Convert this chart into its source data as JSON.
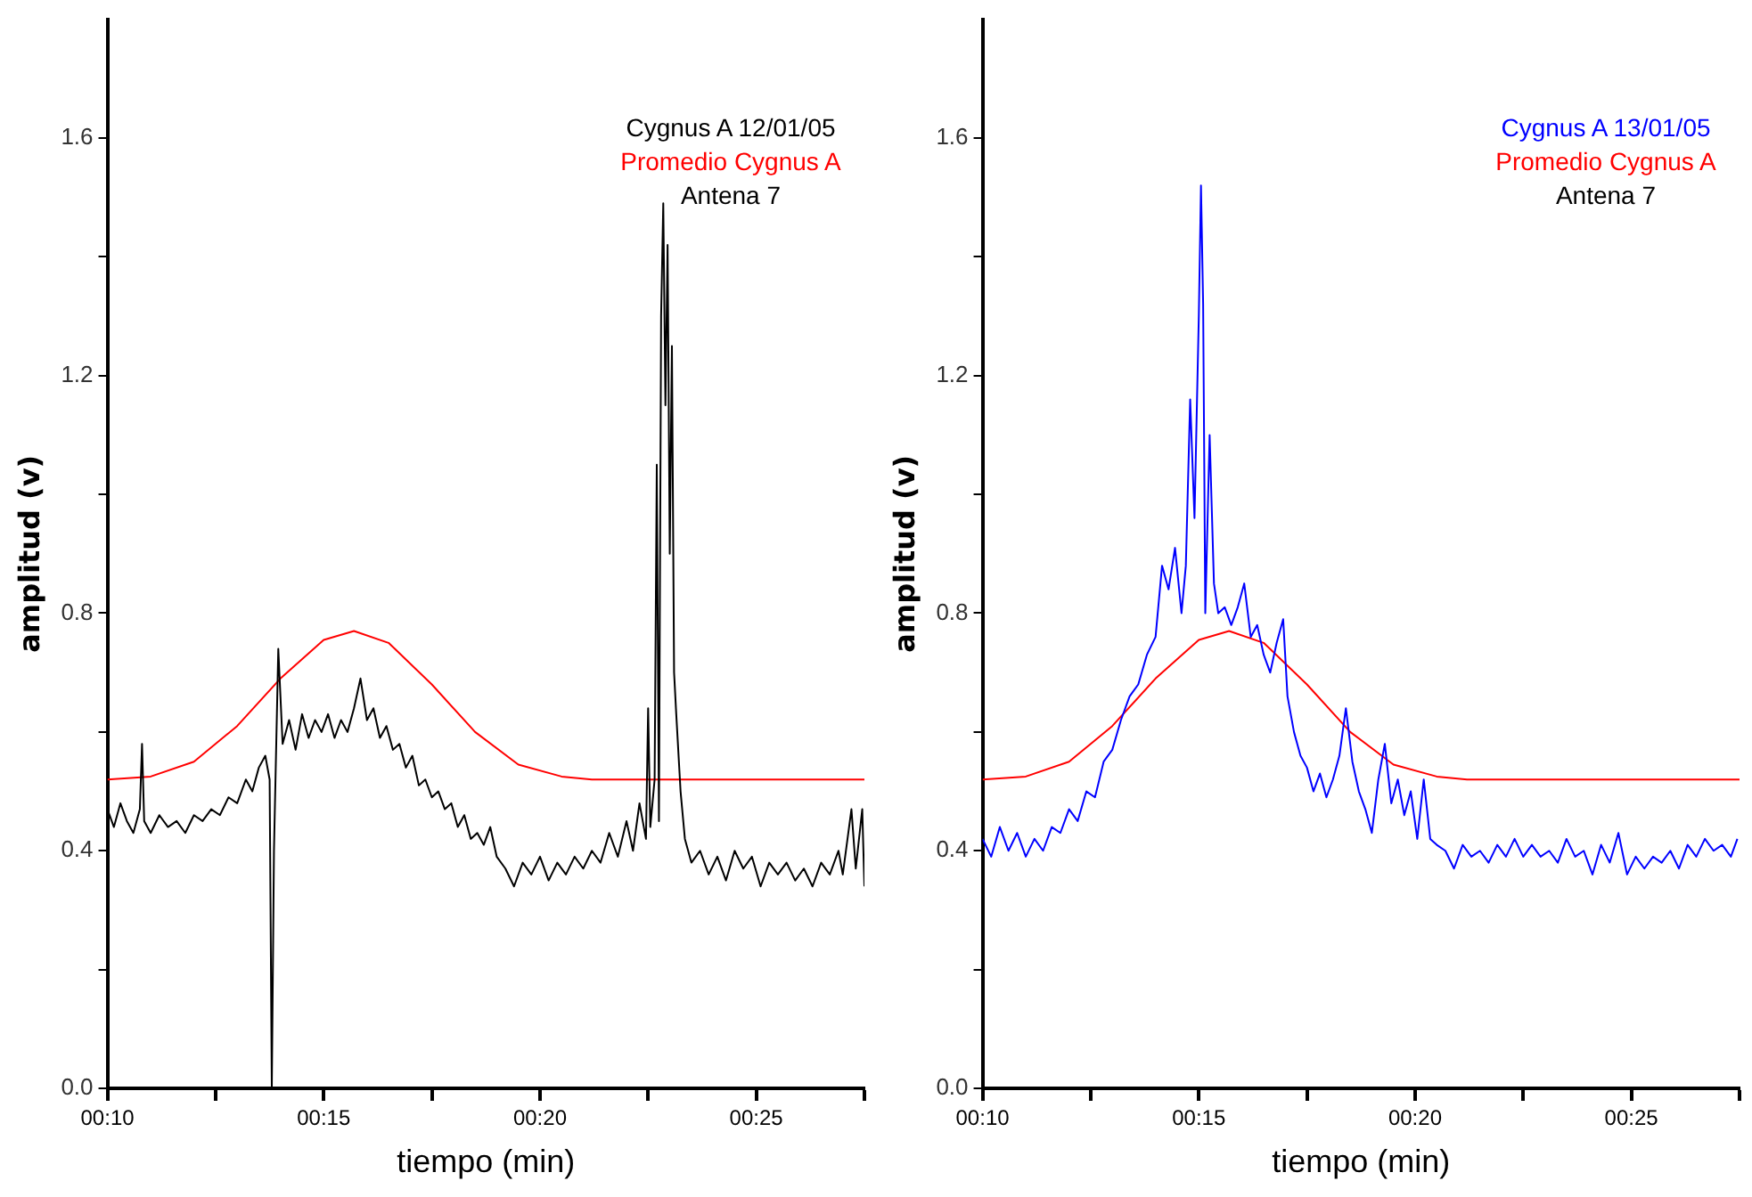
{
  "chart_data": [
    {
      "type": "line",
      "xlabel": "tiempo (min)",
      "ylabel": "amplitud (v)",
      "grid": false,
      "legend": "top right",
      "marker": "none",
      "line_style": "solid",
      "annotations": [
        "Antena 7"
      ],
      "xlim": [
        10,
        27.5
      ],
      "xticks": [
        {
          "value": 10,
          "label": "00:10"
        },
        {
          "value": 12.5,
          "label": null
        },
        {
          "value": 15,
          "label": "00:15"
        },
        {
          "value": 17.5,
          "label": null
        },
        {
          "value": 20,
          "label": "00:20"
        },
        {
          "value": 22.5,
          "label": null
        },
        {
          "value": 25,
          "label": "00:25"
        },
        {
          "value": 27.5,
          "label": null
        }
      ],
      "ylim": [
        0,
        1.8
      ],
      "yticks": [
        {
          "value": 0,
          "label": "0.0"
        },
        {
          "value": 0.2,
          "label": null
        },
        {
          "value": 0.4,
          "label": "0.4"
        },
        {
          "value": 0.6,
          "label": null
        },
        {
          "value": 0.8,
          "label": "0.8"
        },
        {
          "value": 1.0,
          "label": null
        },
        {
          "value": 1.2,
          "label": "1.2"
        },
        {
          "value": 1.4,
          "label": null
        },
        {
          "value": 1.6,
          "label": "1.6"
        }
      ],
      "series": [
        {
          "name": "Cygnus A 12/01/05",
          "color": "#000000",
          "x": [
            10.0,
            10.15,
            10.3,
            10.45,
            10.6,
            10.75,
            10.8,
            10.85,
            11.0,
            11.2,
            11.4,
            11.6,
            11.8,
            12.0,
            12.2,
            12.4,
            12.6,
            12.8,
            13.0,
            13.2,
            13.35,
            13.5,
            13.65,
            13.75,
            13.8,
            13.85,
            13.95,
            14.05,
            14.2,
            14.35,
            14.5,
            14.65,
            14.8,
            14.95,
            15.1,
            15.25,
            15.4,
            15.55,
            15.7,
            15.85,
            16.0,
            16.15,
            16.3,
            16.45,
            16.6,
            16.75,
            16.9,
            17.05,
            17.2,
            17.35,
            17.5,
            17.65,
            17.8,
            17.95,
            18.1,
            18.25,
            18.4,
            18.55,
            18.7,
            18.85,
            19.0,
            19.2,
            19.4,
            19.6,
            19.8,
            20.0,
            20.2,
            20.4,
            20.6,
            20.8,
            21.0,
            21.2,
            21.4,
            21.6,
            21.8,
            22.0,
            22.15,
            22.3,
            22.45,
            22.5,
            22.55,
            22.65,
            22.7,
            22.75,
            22.8,
            22.85,
            22.9,
            22.95,
            23.0,
            23.05,
            23.1,
            23.15,
            23.25,
            23.35,
            23.5,
            23.7,
            23.9,
            24.1,
            24.3,
            24.5,
            24.7,
            24.9,
            25.1,
            25.3,
            25.5,
            25.7,
            25.9,
            26.1,
            26.3,
            26.5,
            26.7,
            26.9,
            27.0,
            27.2,
            27.3,
            27.45,
            27.5
          ],
          "values": [
            0.47,
            0.44,
            0.48,
            0.45,
            0.43,
            0.47,
            0.58,
            0.45,
            0.43,
            0.46,
            0.44,
            0.45,
            0.43,
            0.46,
            0.45,
            0.47,
            0.46,
            0.49,
            0.48,
            0.52,
            0.5,
            0.54,
            0.56,
            0.52,
            0.0,
            0.4,
            0.74,
            0.58,
            0.62,
            0.57,
            0.63,
            0.59,
            0.62,
            0.6,
            0.63,
            0.59,
            0.62,
            0.6,
            0.64,
            0.69,
            0.62,
            0.64,
            0.59,
            0.61,
            0.57,
            0.58,
            0.54,
            0.56,
            0.51,
            0.52,
            0.49,
            0.5,
            0.47,
            0.48,
            0.44,
            0.46,
            0.42,
            0.43,
            0.41,
            0.44,
            0.39,
            0.37,
            0.34,
            0.38,
            0.36,
            0.39,
            0.35,
            0.38,
            0.36,
            0.39,
            0.37,
            0.4,
            0.38,
            0.43,
            0.39,
            0.45,
            0.4,
            0.48,
            0.42,
            0.64,
            0.44,
            0.52,
            1.05,
            0.45,
            1.3,
            1.49,
            1.15,
            1.42,
            0.9,
            1.25,
            0.7,
            0.63,
            0.5,
            0.42,
            0.38,
            0.4,
            0.36,
            0.39,
            0.35,
            0.4,
            0.37,
            0.39,
            0.34,
            0.38,
            0.36,
            0.38,
            0.35,
            0.37,
            0.34,
            0.38,
            0.36,
            0.4,
            0.36,
            0.47,
            0.37,
            0.47,
            0.34
          ]
        },
        {
          "name": "Promedio Cygnus A",
          "color": "#ff0000",
          "x": [
            10,
            11,
            12,
            13,
            14,
            15,
            15.7,
            16.5,
            17.5,
            18.5,
            19.5,
            20.5,
            21.2,
            27.5
          ],
          "values": [
            0.52,
            0.525,
            0.55,
            0.61,
            0.69,
            0.755,
            0.77,
            0.75,
            0.68,
            0.6,
            0.545,
            0.525,
            0.52,
            0.52
          ]
        }
      ]
    },
    {
      "type": "line",
      "xlabel": "tiempo (min)",
      "ylabel": "amplitud (v)",
      "grid": false,
      "legend": "top right",
      "marker": "none",
      "line_style": "solid",
      "annotations": [
        "Antena 7"
      ],
      "xlim": [
        10,
        27.5
      ],
      "xticks": [
        {
          "value": 10,
          "label": "00:10"
        },
        {
          "value": 12.5,
          "label": null
        },
        {
          "value": 15,
          "label": "00:15"
        },
        {
          "value": 17.5,
          "label": null
        },
        {
          "value": 20,
          "label": "00:20"
        },
        {
          "value": 22.5,
          "label": null
        },
        {
          "value": 25,
          "label": "00:25"
        },
        {
          "value": 27.5,
          "label": null
        }
      ],
      "ylim": [
        0,
        1.8
      ],
      "yticks": [
        {
          "value": 0,
          "label": "0.0"
        },
        {
          "value": 0.2,
          "label": null
        },
        {
          "value": 0.4,
          "label": "0.4"
        },
        {
          "value": 0.6,
          "label": null
        },
        {
          "value": 0.8,
          "label": "0.8"
        },
        {
          "value": 1.0,
          "label": null
        },
        {
          "value": 1.2,
          "label": "1.2"
        },
        {
          "value": 1.4,
          "label": null
        },
        {
          "value": 1.6,
          "label": "1.6"
        }
      ],
      "series": [
        {
          "name": "Cygnus A 13/01/05",
          "color": "#0000ff",
          "x": [
            10.0,
            10.2,
            10.4,
            10.6,
            10.8,
            11.0,
            11.2,
            11.4,
            11.6,
            11.8,
            12.0,
            12.2,
            12.4,
            12.6,
            12.8,
            13.0,
            13.2,
            13.4,
            13.6,
            13.8,
            14.0,
            14.15,
            14.3,
            14.45,
            14.6,
            14.7,
            14.8,
            14.9,
            15.0,
            15.05,
            15.1,
            15.15,
            15.25,
            15.35,
            15.45,
            15.6,
            15.75,
            15.9,
            16.05,
            16.2,
            16.35,
            16.5,
            16.65,
            16.8,
            16.95,
            17.05,
            17.2,
            17.35,
            17.5,
            17.65,
            17.8,
            17.95,
            18.1,
            18.25,
            18.4,
            18.55,
            18.7,
            18.85,
            19.0,
            19.15,
            19.3,
            19.45,
            19.6,
            19.75,
            19.9,
            20.05,
            20.2,
            20.35,
            20.5,
            20.7,
            20.9,
            21.1,
            21.3,
            21.5,
            21.7,
            21.9,
            22.1,
            22.3,
            22.5,
            22.7,
            22.9,
            23.1,
            23.3,
            23.5,
            23.7,
            23.9,
            24.1,
            24.3,
            24.5,
            24.7,
            24.9,
            25.1,
            25.3,
            25.5,
            25.7,
            25.9,
            26.1,
            26.3,
            26.5,
            26.7,
            26.9,
            27.1,
            27.3,
            27.45
          ],
          "values": [
            0.42,
            0.39,
            0.44,
            0.4,
            0.43,
            0.39,
            0.42,
            0.4,
            0.44,
            0.43,
            0.47,
            0.45,
            0.5,
            0.49,
            0.55,
            0.57,
            0.62,
            0.66,
            0.68,
            0.73,
            0.76,
            0.88,
            0.84,
            0.91,
            0.8,
            0.88,
            1.16,
            0.96,
            1.3,
            1.52,
            1.32,
            0.8,
            1.1,
            0.85,
            0.8,
            0.81,
            0.78,
            0.81,
            0.85,
            0.76,
            0.78,
            0.73,
            0.7,
            0.75,
            0.79,
            0.66,
            0.6,
            0.56,
            0.54,
            0.5,
            0.53,
            0.49,
            0.52,
            0.56,
            0.64,
            0.55,
            0.5,
            0.47,
            0.43,
            0.52,
            0.58,
            0.48,
            0.52,
            0.46,
            0.5,
            0.42,
            0.52,
            0.42,
            0.41,
            0.4,
            0.37,
            0.41,
            0.39,
            0.4,
            0.38,
            0.41,
            0.39,
            0.42,
            0.39,
            0.41,
            0.39,
            0.4,
            0.38,
            0.42,
            0.39,
            0.4,
            0.36,
            0.41,
            0.38,
            0.43,
            0.36,
            0.39,
            0.37,
            0.39,
            0.38,
            0.4,
            0.37,
            0.41,
            0.39,
            0.42,
            0.4,
            0.41,
            0.39,
            0.42
          ]
        },
        {
          "name": "Promedio Cygnus A",
          "color": "#ff0000",
          "x": [
            10,
            11,
            12,
            13,
            14,
            15,
            15.7,
            16.5,
            17.5,
            18.5,
            19.5,
            20.5,
            21.2,
            27.5
          ],
          "values": [
            0.52,
            0.525,
            0.55,
            0.61,
            0.69,
            0.755,
            0.77,
            0.75,
            0.68,
            0.6,
            0.545,
            0.525,
            0.52,
            0.52
          ]
        }
      ]
    }
  ]
}
